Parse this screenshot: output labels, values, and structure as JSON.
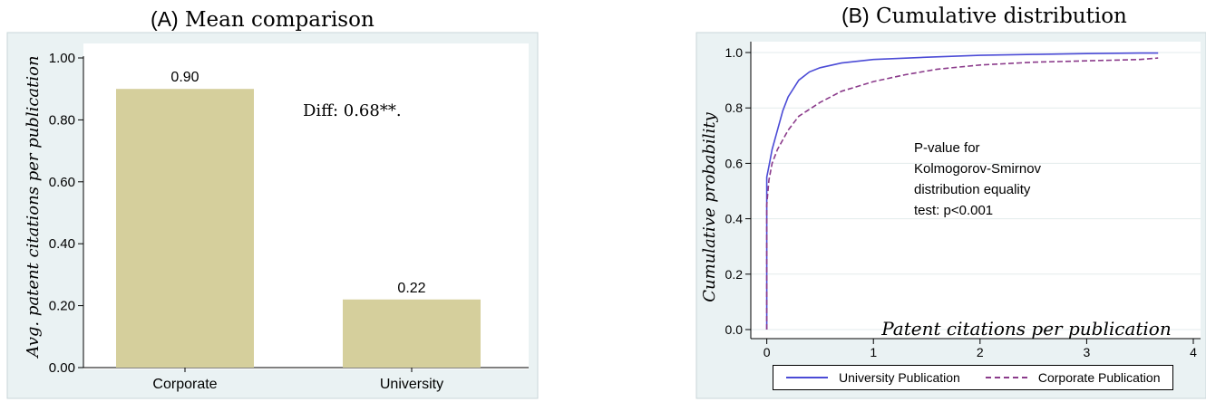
{
  "chart_data": [
    {
      "type": "bar",
      "title_prefix": "(A)",
      "title": "Mean comparison",
      "categories": [
        "Corporate",
        "University"
      ],
      "values": [
        0.9,
        0.22
      ],
      "value_labels": [
        "0.90",
        "0.22"
      ],
      "ylabel": "Avg. patent citations per publication",
      "xlabel": "",
      "ylim": [
        0,
        1.0
      ],
      "yticks": [
        0,
        0.2,
        0.4,
        0.6,
        0.8,
        1.0
      ],
      "ytick_labels": [
        "0.00",
        "0.20",
        "0.40",
        "0.60",
        "0.80",
        "1.00"
      ],
      "annotation": "Diff: 0.68**.",
      "bar_color": "#d5cf9c",
      "plot_bg": "#eaf2f3",
      "grid": false
    },
    {
      "type": "line",
      "title_prefix": "(B)",
      "title": "Cumulative distribution",
      "xlabel": "Patent citations per publication",
      "ylabel": "Cumulative probability",
      "xlim": [
        -0.15,
        4
      ],
      "ylim": [
        0,
        1.0
      ],
      "xticks": [
        0,
        1,
        2,
        3,
        4
      ],
      "xtick_labels": [
        "0",
        "1",
        "2",
        "3",
        "4"
      ],
      "yticks": [
        0,
        0.2,
        0.4,
        0.6,
        0.8,
        1.0
      ],
      "ytick_labels": [
        "0.0",
        "0.2",
        "0.4",
        "0.6",
        "0.8",
        "1.0"
      ],
      "grid": true,
      "plot_bg": "#eaf2f3",
      "legend_position": "bottom",
      "annotation_lines": [
        "P-value for",
        "Kolmogorov-Smirnov",
        "distribution equality",
        "test: p<0.001"
      ],
      "series": [
        {
          "name": "University Publication",
          "color": "#4b4bd6",
          "dash": "solid",
          "x": [
            0,
            0,
            0.02,
            0.05,
            0.1,
            0.15,
            0.2,
            0.3,
            0.4,
            0.5,
            0.7,
            1.0,
            1.5,
            2.0,
            2.5,
            3.0,
            3.5,
            3.67
          ],
          "y": [
            0,
            0.55,
            0.59,
            0.65,
            0.72,
            0.79,
            0.84,
            0.9,
            0.93,
            0.945,
            0.962,
            0.975,
            0.983,
            0.99,
            0.993,
            0.996,
            0.998,
            0.998
          ]
        },
        {
          "name": "Corporate Publication",
          "color": "#8b3b8b",
          "dash": "dashed",
          "x": [
            0,
            0,
            0.02,
            0.05,
            0.1,
            0.2,
            0.3,
            0.5,
            0.7,
            1.0,
            1.3,
            1.6,
            2.0,
            2.5,
            3.0,
            3.5,
            3.67
          ],
          "y": [
            0,
            0.45,
            0.54,
            0.6,
            0.65,
            0.72,
            0.77,
            0.82,
            0.86,
            0.895,
            0.92,
            0.94,
            0.955,
            0.965,
            0.97,
            0.975,
            0.98
          ]
        }
      ]
    }
  ]
}
